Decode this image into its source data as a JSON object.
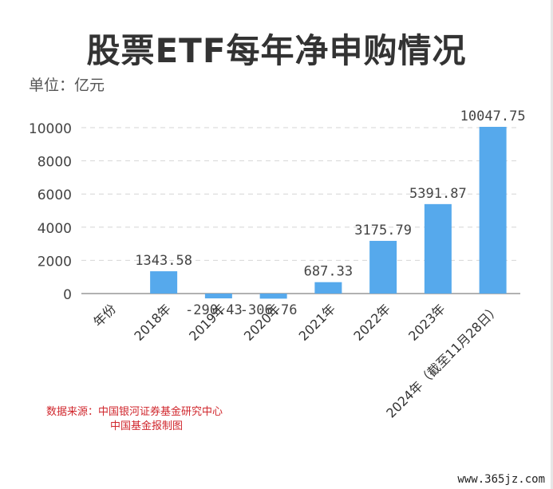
{
  "title": "股票ETF每年净申购情况",
  "unit_label": "单位：亿元",
  "source": {
    "line1": "数据来源：中国银河证券基金研究中心",
    "line2": "中国基金报制图"
  },
  "watermark": "www.365jz.com",
  "colors": {
    "bar": "#56a9ec",
    "axis": "#999999",
    "grid": "#d6d6d6",
    "source": "#d0262c"
  },
  "chart_data": {
    "type": "bar",
    "title": "股票ETF每年净申购情况",
    "ylabel": "单位：亿元",
    "xlabel": "",
    "ylim": [
      -500,
      10500
    ],
    "yticks": [
      0,
      2000,
      4000,
      6000,
      8000,
      10000
    ],
    "grid": true,
    "categories": [
      "年份",
      "2018年",
      "2019年",
      "2020年",
      "2021年",
      "2022年",
      "2023年",
      "2024年（截至11月28日）"
    ],
    "values": [
      null,
      1343.58,
      -290.43,
      -306.76,
      687.33,
      3175.79,
      5391.87,
      10047.75
    ],
    "data_labels": [
      "",
      "1343.58",
      "-290.43",
      "-306.76",
      "687.33",
      "3175.79",
      "5391.87",
      "10047.75"
    ]
  }
}
